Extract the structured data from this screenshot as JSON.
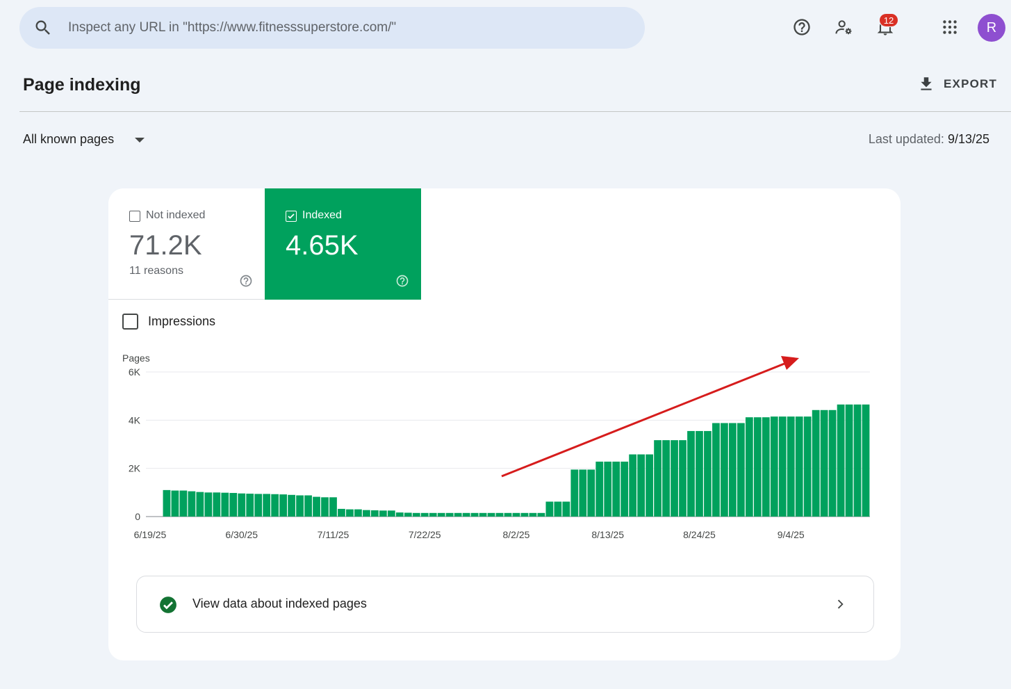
{
  "search": {
    "placeholder": "Inspect any URL in \"https://www.fitnesssuperstore.com/\""
  },
  "header": {
    "notifications_count": "12",
    "avatar_letter": "R"
  },
  "page": {
    "title": "Page indexing",
    "export_label": "EXPORT",
    "filter_label": "All known pages",
    "last_updated_label": "Last updated:",
    "last_updated_value": "9/13/25"
  },
  "summary": {
    "not_indexed": {
      "label": "Not indexed",
      "value": "71.2K",
      "sub": "11 reasons",
      "checked": false
    },
    "indexed": {
      "label": "Indexed",
      "value": "4.65K",
      "checked": true
    }
  },
  "impressions_label": "Impressions",
  "view_link_label": "View data about indexed pages",
  "colors": {
    "indexed_green": "#00a15d",
    "arrow_red": "#d61c1c",
    "accent": "#1a73e8"
  },
  "chart_data": {
    "type": "bar",
    "ylabel": "Pages",
    "ylim": [
      0,
      6000
    ],
    "yticks": [
      {
        "v": 0,
        "label": "0"
      },
      {
        "v": 2000,
        "label": "2K"
      },
      {
        "v": 4000,
        "label": "4K"
      },
      {
        "v": 6000,
        "label": "6K"
      }
    ],
    "xtick_labels": [
      "6/19/25",
      "6/30/25",
      "7/11/25",
      "7/22/25",
      "8/2/25",
      "8/13/25",
      "8/24/25",
      "9/4/25"
    ],
    "start_label": "6/19/25",
    "series": [
      {
        "values": [
          0,
          0,
          1100,
          1080,
          1080,
          1050,
          1020,
          1000,
          1000,
          990,
          980,
          960,
          950,
          940,
          940,
          930,
          920,
          900,
          880,
          880,
          820,
          800,
          800,
          320,
          300,
          300,
          270,
          260,
          250,
          250,
          170,
          160,
          150,
          150,
          150,
          150,
          150,
          150,
          150,
          150,
          150,
          150,
          150,
          150,
          150,
          150,
          150,
          150,
          620,
          620,
          620,
          1950,
          1950,
          1950,
          2280,
          2280,
          2280,
          2280,
          2580,
          2580,
          2580,
          3170,
          3170,
          3170,
          3170,
          3550,
          3550,
          3550,
          3880,
          3880,
          3880,
          3880,
          4120,
          4120,
          4120,
          4150,
          4150,
          4150,
          4150,
          4150,
          4420,
          4420,
          4420,
          4650,
          4650,
          4650,
          4650
        ]
      }
    ],
    "annotation": "trend-arrow"
  }
}
